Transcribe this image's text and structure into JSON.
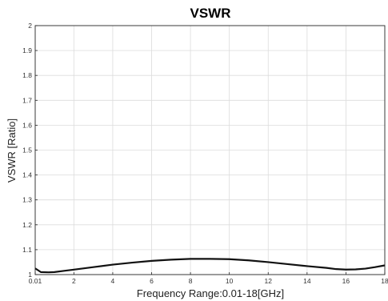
{
  "chart_data": {
    "type": "line",
    "title": "VSWR",
    "xlabel": "Frequency Range:0.01-18[GHz]",
    "ylabel": "VSWR [Ratio]",
    "xlim": [
      0.01,
      18
    ],
    "ylim": [
      1,
      2
    ],
    "xticks": [
      0.01,
      2,
      4,
      6,
      8,
      10,
      12,
      14,
      16,
      18
    ],
    "xtick_labels": [
      "0.01",
      "2",
      "4",
      "6",
      "8",
      "10",
      "12",
      "14",
      "16",
      "18"
    ],
    "yticks": [
      1,
      1.1,
      1.2,
      1.3,
      1.4,
      1.5,
      1.6,
      1.7,
      1.8,
      1.9,
      2
    ],
    "ytick_labels": [
      "1",
      "1.1",
      "1.2",
      "1.3",
      "1.4",
      "1.5",
      "1.6",
      "1.7",
      "1.8",
      "1.9",
      "2"
    ],
    "grid": true,
    "series": [
      {
        "color": "#111111",
        "x": [
          0.01,
          0.3,
          0.7,
          1,
          1.5,
          2,
          3,
          4,
          5,
          6,
          7,
          8,
          9,
          10,
          11,
          12,
          13,
          14,
          15,
          15.5,
          16,
          16.5,
          17,
          17.5,
          18
        ],
        "y": [
          1.025,
          1.01,
          1.009,
          1.01,
          1.015,
          1.02,
          1.03,
          1.04,
          1.048,
          1.055,
          1.06,
          1.063,
          1.063,
          1.062,
          1.057,
          1.05,
          1.042,
          1.034,
          1.027,
          1.022,
          1.02,
          1.021,
          1.024,
          1.03,
          1.037
        ]
      }
    ]
  }
}
